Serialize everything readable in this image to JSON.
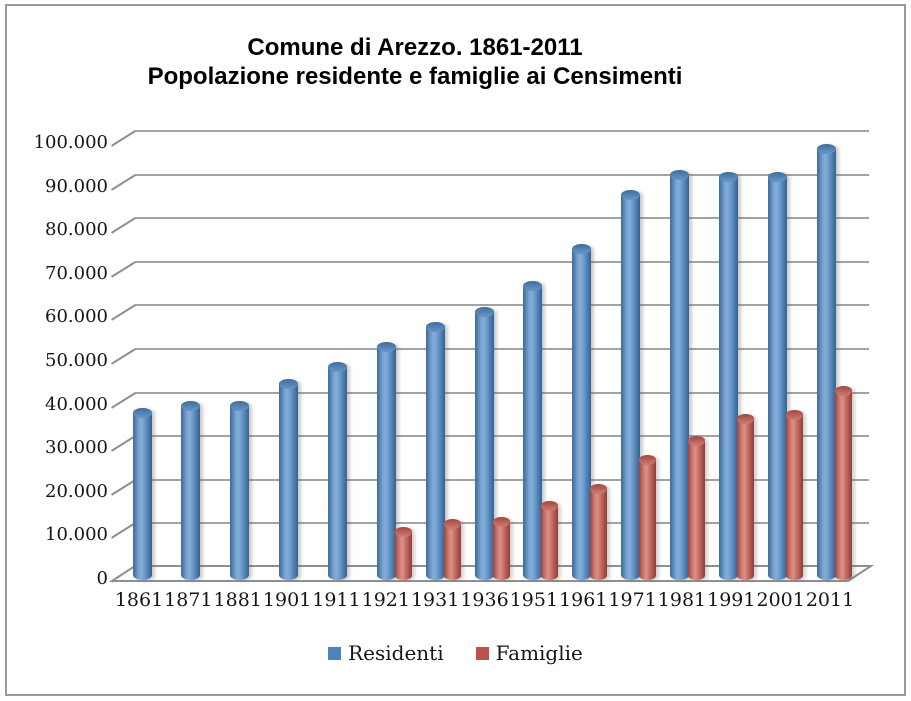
{
  "title": {
    "line1": "Comune di Arezzo. 1861-2011",
    "line2": "Popolazione residente e famiglie ai Censimenti"
  },
  "legend": {
    "items": [
      {
        "label": "Residenti",
        "color": "#4F81BD"
      },
      {
        "label": "Famiglie",
        "color": "#C0504D"
      }
    ]
  },
  "y_axis": {
    "tick_labels": [
      "0",
      "10.000",
      "20.000",
      "30.000",
      "40.000",
      "50.000",
      "60.000",
      "70.000",
      "80.000",
      "90.000",
      "100.000"
    ]
  },
  "chart_data": {
    "type": "bar",
    "style": "3d-cylinder",
    "title": "Comune di Arezzo. 1861-2011 Popolazione residente e famiglie ai Censimenti",
    "categories": [
      "1861",
      "1871",
      "1881",
      "1901",
      "1911",
      "1921",
      "1931",
      "1936",
      "1951",
      "1961",
      "1971",
      "1981",
      "1991",
      "2001",
      "2011"
    ],
    "series": [
      {
        "name": "Residenti",
        "color": "#4F81BD",
        "values": [
          37500,
          39000,
          39000,
          44000,
          48000,
          52500,
          57000,
          60500,
          66500,
          75000,
          87500,
          92000,
          91500,
          91500,
          98000
        ]
      },
      {
        "name": "Famiglie",
        "color": "#C0504D",
        "values": [
          null,
          null,
          null,
          null,
          null,
          10000,
          12000,
          12500,
          16000,
          20000,
          26500,
          31000,
          36000,
          37000,
          42500
        ]
      }
    ],
    "ylim": [
      0,
      100000
    ],
    "y_tick_step": 10000,
    "grid": true,
    "legend_position": "bottom",
    "number_format": "thousands-dot-separator"
  }
}
